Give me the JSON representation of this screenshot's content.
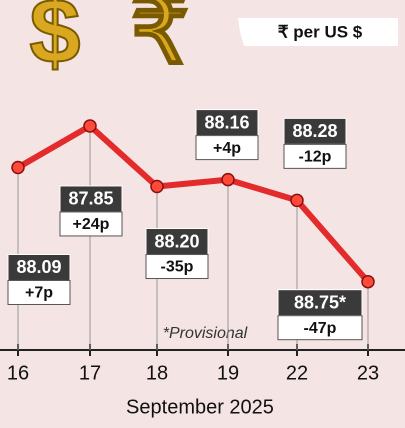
{
  "chart_data": {
    "type": "line",
    "icons": [
      "$",
      "₹"
    ],
    "subtitle": "₹ per US $",
    "categories": [
      "16",
      "17",
      "18",
      "19",
      "22",
      "23"
    ],
    "x_label": "September 2025",
    "series": [
      {
        "color": "#e32b2b",
        "values": [
          88.09,
          87.85,
          88.2,
          88.16,
          88.28,
          88.75
        ],
        "value_labels": [
          "88.09",
          "87.85",
          "88.20",
          "88.16",
          "88.28",
          "88.75*"
        ],
        "changes": [
          "+7p",
          "+24p",
          "-35p",
          "+4p",
          "-12p",
          "-47p"
        ]
      }
    ],
    "ylim": [
      87.7,
      88.85
    ],
    "y_inverted": true,
    "annotation": "*Provisional"
  }
}
